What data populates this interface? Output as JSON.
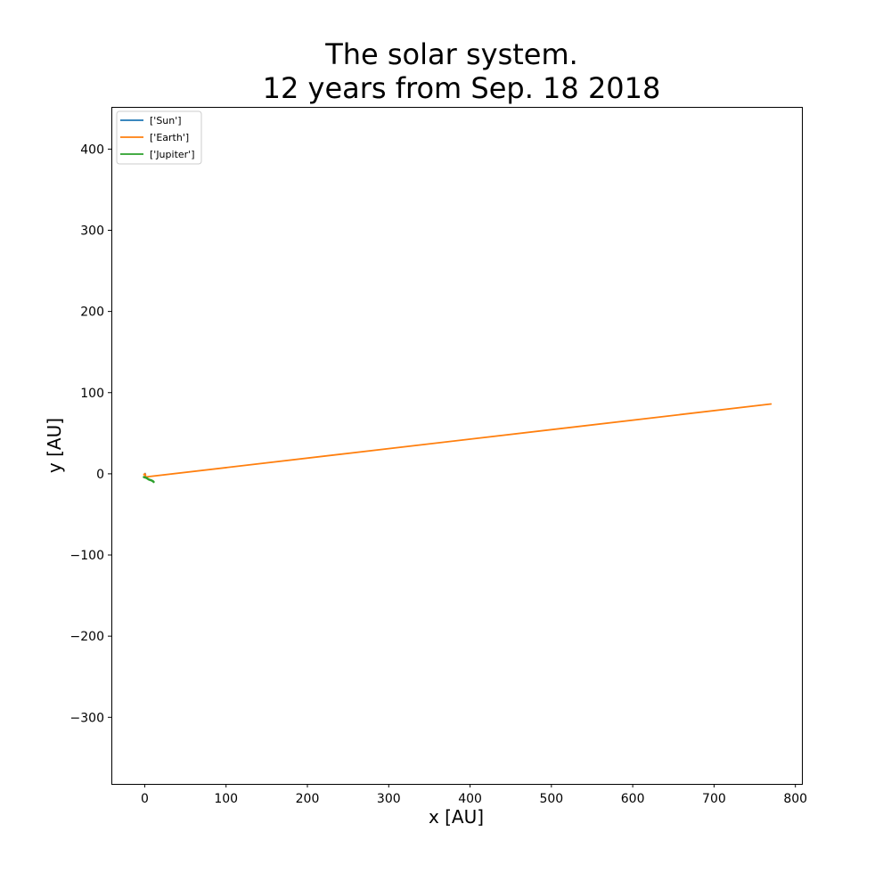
{
  "chart_data": {
    "type": "line",
    "title_line1": "The solar system.",
    "title_line2": "12 years from Sep. 18 2018",
    "xlabel": "x [AU]",
    "ylabel": "y [AU]",
    "xlim": [
      -41,
      808
    ],
    "ylim": [
      -382,
      452
    ],
    "xticks": [
      0,
      100,
      200,
      300,
      400,
      500,
      600,
      700,
      800
    ],
    "yticks": [
      -300,
      -200,
      -100,
      0,
      100,
      200,
      300,
      400
    ],
    "xtick_labels": [
      "0",
      "100",
      "200",
      "300",
      "400",
      "500",
      "600",
      "700",
      "800"
    ],
    "ytick_labels": [
      "−300",
      "−200",
      "−100",
      "0",
      "100",
      "200",
      "300",
      "400"
    ],
    "grid": false,
    "legend_position": "top-left",
    "series": [
      {
        "name": "['Sun']",
        "color": "#1f77b4",
        "x": [
          0,
          0.5
        ],
        "y": [
          0,
          0.3
        ]
      },
      {
        "name": "['Earth']",
        "color": "#ff7f0e",
        "x": [
          -1,
          0,
          1,
          0.5,
          770
        ],
        "y": [
          -1,
          0,
          -1,
          -4,
          86
        ]
      },
      {
        "name": "['Jupiter']",
        "color": "#2ca02c",
        "x": [
          -1,
          2,
          5,
          8,
          10,
          11
        ],
        "y": [
          -4,
          -5,
          -7,
          -8,
          -9,
          -10
        ]
      }
    ]
  }
}
